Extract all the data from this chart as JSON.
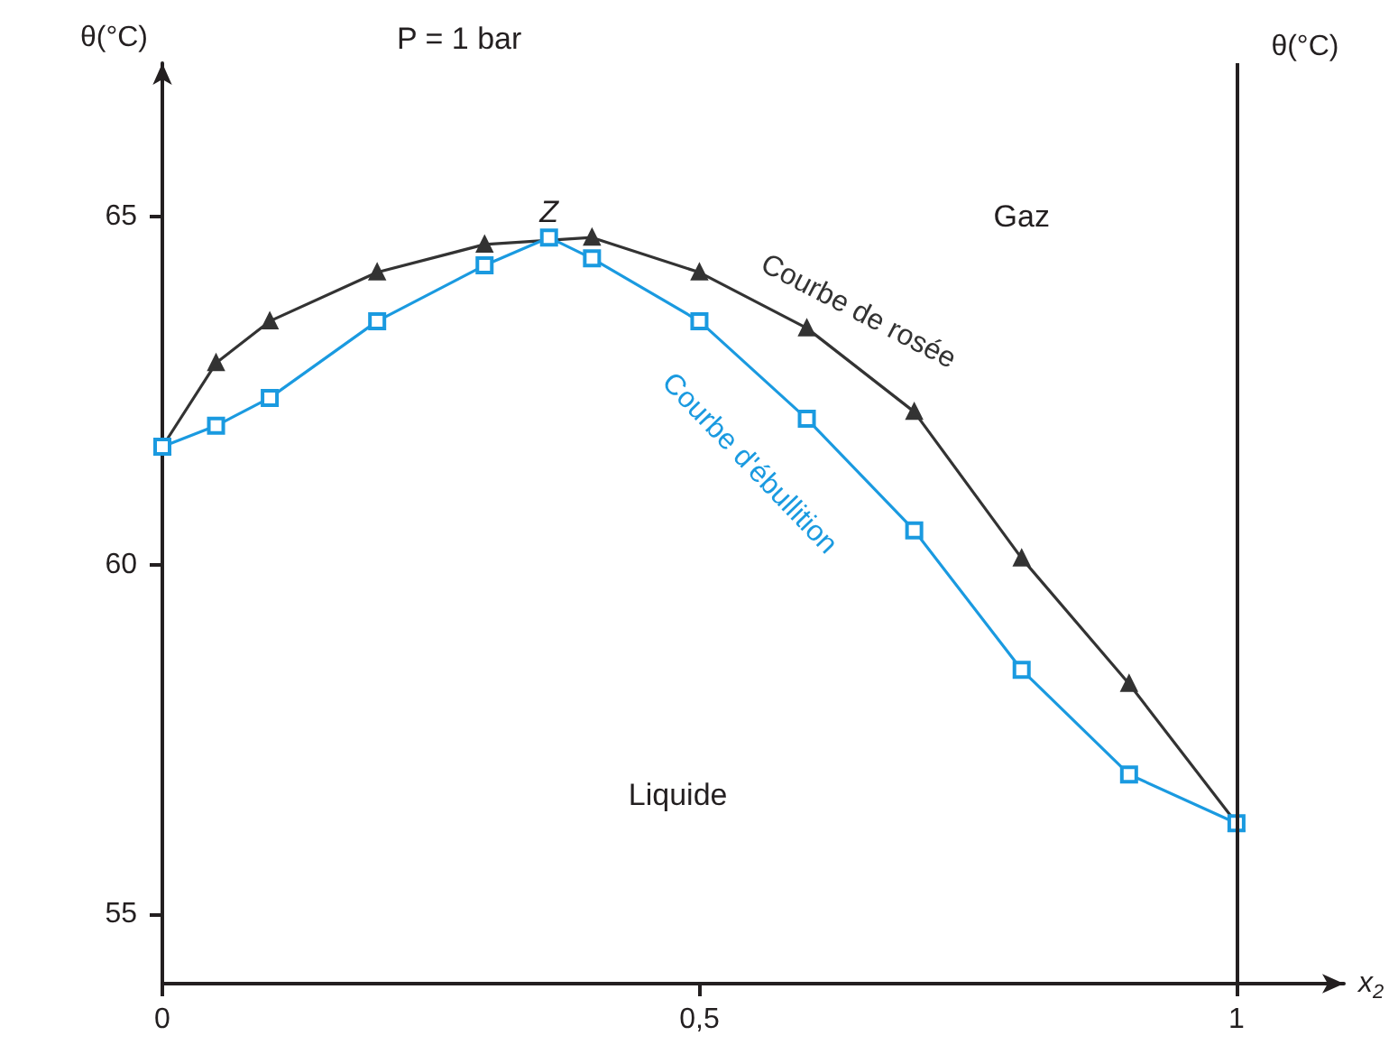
{
  "chart_data": {
    "type": "line",
    "title": "P = 1 bar",
    "xlabel": "x$_{2}$",
    "ylabel": "θ(°C)",
    "xlim": [
      0,
      1.1
    ],
    "xticks": [
      0,
      {
        "value": 0.5,
        "label": "0,5"
      },
      1
    ],
    "ylim": [
      54,
      67.2
    ],
    "yticks": [
      55,
      60,
      65
    ],
    "ref_lines": [
      {
        "axis": "x",
        "value": 1,
        "label": "θ(°C)"
      }
    ],
    "grid": false,
    "legend": false,
    "series": [
      {
        "name": "Courbe de rosée",
        "color": "#333333",
        "marker": "triangle",
        "x": [
          0,
          0.05,
          0.1,
          0.2,
          0.3,
          0.4,
          0.5,
          0.6,
          0.7,
          0.8,
          0.9,
          1
        ],
        "values": [
          61.7,
          62.9,
          63.5,
          64.2,
          64.6,
          64.7,
          64.2,
          63.4,
          62.2,
          60.1,
          58.3,
          56.3
        ]
      },
      {
        "name": "Courbe d'ébullition",
        "color": "#1a9ae0",
        "marker": "square",
        "x": [
          0,
          0.05,
          0.1,
          0.2,
          0.3,
          0.36,
          0.4,
          0.5,
          0.6,
          0.7,
          0.8,
          0.9,
          1
        ],
        "values": [
          61.7,
          62.0,
          62.4,
          63.5,
          64.3,
          64.7,
          64.4,
          63.5,
          62.1,
          60.5,
          58.5,
          57.0,
          56.3
        ]
      }
    ],
    "annotations": [
      {
        "text": "Z",
        "x": 0.36,
        "y": 64.7
      },
      "Gaz",
      "Liquide"
    ]
  }
}
